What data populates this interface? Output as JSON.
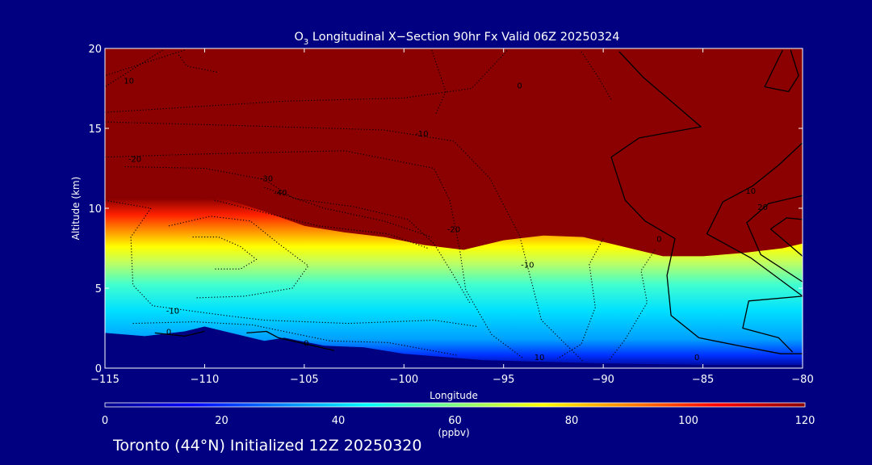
{
  "colors": {
    "background": "#000080",
    "saturated": "#8b0000",
    "contour": "#000000",
    "text": "#ffffff"
  },
  "chart_data": {
    "type": "heatmap",
    "title_main": "O",
    "title_sub": "3",
    "title_rest": " Longitudinal X−Section 90hr  Fx Valid 06Z 20250324",
    "xlabel": "Longitude",
    "ylabel": "Altitude (km)",
    "xlim": [
      -115,
      -80
    ],
    "ylim": [
      0,
      20
    ],
    "x_ticks": [
      -115,
      -110,
      -105,
      -100,
      -95,
      -90,
      -85,
      -80
    ],
    "x_tick_labels": [
      "−115",
      "−110",
      "−105",
      "−100",
      "−95",
      "−90",
      "−85",
      "−80"
    ],
    "y_ticks": [
      0,
      5,
      10,
      15,
      20
    ],
    "y_tick_labels": [
      "0",
      "5",
      "10",
      "15",
      "20"
    ],
    "colorbar": {
      "min": 0,
      "max": 120,
      "ticks": [
        0,
        20,
        40,
        60,
        80,
        100,
        120
      ],
      "tick_labels": [
        "0",
        "20",
        "40",
        "60",
        "80",
        "100",
        "120"
      ],
      "units": "(ppbv)",
      "colors": [
        "#00008b",
        "#0000ff",
        "#0080ff",
        "#00ffff",
        "#80ff80",
        "#ffff00",
        "#ff8000",
        "#ff0000",
        "#8b0000"
      ]
    },
    "ozone_field": {
      "saturation_boundary_km": [
        {
          "lon": -115,
          "alt": 11.2
        },
        {
          "lon": -113,
          "alt": 11.3
        },
        {
          "lon": -111,
          "alt": 11.0
        },
        {
          "lon": -109,
          "alt": 10.6
        },
        {
          "lon": -107,
          "alt": 9.8
        },
        {
          "lon": -105,
          "alt": 8.9
        },
        {
          "lon": -103,
          "alt": 8.5
        },
        {
          "lon": -101,
          "alt": 8.2
        },
        {
          "lon": -99,
          "alt": 7.7
        },
        {
          "lon": -97,
          "alt": 7.4
        },
        {
          "lon": -95,
          "alt": 8.0
        },
        {
          "lon": -93,
          "alt": 8.3
        },
        {
          "lon": -91,
          "alt": 8.2
        },
        {
          "lon": -89,
          "alt": 7.6
        },
        {
          "lon": -87,
          "alt": 7.0
        },
        {
          "lon": -85,
          "alt": 7.0
        },
        {
          "lon": -83,
          "alt": 7.2
        },
        {
          "lon": -81,
          "alt": 7.5
        },
        {
          "lon": -80,
          "alt": 7.8
        }
      ],
      "terrain_km": [
        {
          "lon": -115,
          "alt": 2.2
        },
        {
          "lon": -113,
          "alt": 2.0
        },
        {
          "lon": -111,
          "alt": 2.3
        },
        {
          "lon": -110,
          "alt": 2.6
        },
        {
          "lon": -108,
          "alt": 2.0
        },
        {
          "lon": -107,
          "alt": 1.7
        },
        {
          "lon": -106,
          "alt": 1.9
        },
        {
          "lon": -104,
          "alt": 1.4
        },
        {
          "lon": -102,
          "alt": 1.3
        },
        {
          "lon": -100,
          "alt": 0.9
        },
        {
          "lon": -96,
          "alt": 0.5
        },
        {
          "lon": -90,
          "alt": 0.3
        },
        {
          "lon": -85,
          "alt": 0.2
        },
        {
          "lon": -80,
          "alt": 0.2
        }
      ]
    },
    "contour_labels": [
      {
        "text": "10",
        "lon": -113.8,
        "alt": 17.8
      },
      {
        "text": "-20",
        "lon": -113.5,
        "alt": 12.9
      },
      {
        "text": "-30",
        "lon": -106.9,
        "alt": 11.7
      },
      {
        "text": "-40",
        "lon": -106.2,
        "alt": 10.8
      },
      {
        "text": "-10",
        "lon": -99.1,
        "alt": 14.5
      },
      {
        "text": "0",
        "lon": -94.2,
        "alt": 17.5
      },
      {
        "text": "-20",
        "lon": -97.5,
        "alt": 8.5
      },
      {
        "text": "-10",
        "lon": -93.8,
        "alt": 6.3
      },
      {
        "text": "-10",
        "lon": -111.6,
        "alt": 3.4
      },
      {
        "text": "0",
        "lon": -111.8,
        "alt": 2.1
      },
      {
        "text": "0",
        "lon": -104.9,
        "alt": 1.4
      },
      {
        "text": "10",
        "lon": -93.2,
        "alt": 0.5
      },
      {
        "text": "0",
        "lon": -85.3,
        "alt": 0.5
      },
      {
        "text": "0",
        "lon": -87.2,
        "alt": 7.9
      },
      {
        "text": "10",
        "lon": -82.6,
        "alt": 10.9
      },
      {
        "text": "20",
        "lon": -82.0,
        "alt": 9.9
      }
    ],
    "contours_solid": [
      [
        [
          -81,
          19.9
        ],
        [
          -81.9,
          17.6
        ],
        [
          -80.7,
          17.3
        ],
        [
          -80.2,
          18.3
        ],
        [
          -80.6,
          19.9
        ]
      ],
      [
        [
          -89.2,
          19.8
        ],
        [
          -88,
          18.2
        ],
        [
          -85.1,
          15.1
        ],
        [
          -88.2,
          14.4
        ],
        [
          -89.6,
          13.2
        ],
        [
          -88.9,
          10.5
        ],
        [
          -87.9,
          9.2
        ],
        [
          -86.4,
          8.1
        ],
        [
          -86.8,
          5.8
        ],
        [
          -86.6,
          3.3
        ],
        [
          -85.2,
          1.9
        ],
        [
          -83.2,
          1.4
        ],
        [
          -81.1,
          0.9
        ],
        [
          -80,
          0.9
        ]
      ],
      [
        [
          -80,
          4.5
        ],
        [
          -82.6,
          6.9
        ],
        [
          -84.8,
          8.4
        ],
        [
          -84,
          10.4
        ],
        [
          -82.5,
          11.4
        ],
        [
          -81.2,
          12.7
        ],
        [
          -80,
          14.1
        ]
      ],
      [
        [
          -80,
          4.5
        ],
        [
          -82.7,
          4.2
        ],
        [
          -83,
          2.5
        ],
        [
          -81.2,
          1.9
        ],
        [
          -80.5,
          1.0
        ]
      ],
      [
        [
          -80,
          5.4
        ],
        [
          -82.1,
          7.1
        ],
        [
          -82.8,
          9.1
        ],
        [
          -81.7,
          10.3
        ],
        [
          -80,
          10.8
        ]
      ],
      [
        [
          -80,
          7.0
        ],
        [
          -81.6,
          8.7
        ],
        [
          -80.8,
          9.4
        ],
        [
          -80,
          9.3
        ]
      ],
      [
        [
          -107.9,
          2.2
        ],
        [
          -106.9,
          2.3
        ],
        [
          -106.3,
          1.9
        ],
        [
          -103.5,
          1.1
        ]
      ],
      [
        [
          -112.5,
          2.2
        ],
        [
          -111,
          2.0
        ],
        [
          -110,
          2.3
        ]
      ]
    ],
    "contours_dotted": [
      [
        [
          -111,
          19.9
        ],
        [
          -115,
          18.3
        ]
      ],
      [
        [
          -112.1,
          19.9
        ],
        [
          -115,
          17.6
        ]
      ],
      [
        [
          -115,
          16.0
        ],
        [
          -106,
          16.7
        ],
        [
          -100,
          16.9
        ],
        [
          -96.6,
          17.5
        ],
        [
          -94.8,
          19.9
        ]
      ],
      [
        [
          -115,
          15.4
        ],
        [
          -109,
          15.2
        ],
        [
          -101,
          14.9
        ],
        [
          -97.5,
          14.2
        ],
        [
          -95.7,
          11.9
        ],
        [
          -94.2,
          8.3
        ],
        [
          -93.1,
          3.0
        ],
        [
          -91,
          0.4
        ]
      ],
      [
        [
          -115,
          13.2
        ],
        [
          -110,
          13.4
        ],
        [
          -103,
          13.6
        ],
        [
          -98.5,
          12.5
        ],
        [
          -97.7,
          10.5
        ],
        [
          -97.2,
          7.4
        ],
        [
          -96.9,
          4.9
        ],
        [
          -95.6,
          2.1
        ],
        [
          -94,
          0.6
        ]
      ],
      [
        [
          -114,
          12.6
        ],
        [
          -110,
          12.5
        ],
        [
          -107,
          11.8
        ],
        [
          -105.5,
          10.6
        ],
        [
          -102.5,
          10.1
        ],
        [
          -99.8,
          9.3
        ],
        [
          -98.5,
          7.8
        ],
        [
          -97.6,
          6.0
        ],
        [
          -96.7,
          4.1
        ]
      ],
      [
        [
          -107,
          11.3
        ],
        [
          -104,
          10.0
        ],
        [
          -101,
          9.2
        ],
        [
          -98.6,
          8.2
        ]
      ],
      [
        [
          -109.5,
          10.5
        ],
        [
          -104.3,
          8.9
        ],
        [
          -100.8,
          8.4
        ],
        [
          -98.8,
          7.5
        ]
      ],
      [
        [
          -115,
          10.5
        ],
        [
          -112.7,
          10.0
        ],
        [
          -113.7,
          8.2
        ],
        [
          -113.6,
          5.2
        ],
        [
          -112.6,
          3.9
        ],
        [
          -109,
          3.3
        ],
        [
          -107,
          3.0
        ],
        [
          -102.8,
          2.8
        ],
        [
          -98.5,
          3.0
        ],
        [
          -96.3,
          2.6
        ]
      ],
      [
        [
          -111.8,
          8.9
        ],
        [
          -109.7,
          9.5
        ],
        [
          -107.7,
          9.2
        ],
        [
          -106.3,
          7.8
        ],
        [
          -104.8,
          6.4
        ],
        [
          -105.6,
          5.0
        ],
        [
          -108,
          4.5
        ],
        [
          -110.4,
          4.4
        ]
      ],
      [
        [
          -110.6,
          8.2
        ],
        [
          -109.3,
          8.2
        ],
        [
          -108.2,
          7.6
        ],
        [
          -107.4,
          6.8
        ],
        [
          -108.2,
          6.2
        ],
        [
          -109.5,
          6.2
        ]
      ],
      [
        [
          -113.6,
          2.8
        ],
        [
          -110.5,
          2.9
        ],
        [
          -107.6,
          2.7
        ],
        [
          -103.7,
          1.7
        ],
        [
          -100.8,
          1.6
        ],
        [
          -97.3,
          0.8
        ]
      ],
      [
        [
          -90,
          8.1
        ],
        [
          -90.7,
          6.5
        ],
        [
          -90.4,
          3.8
        ],
        [
          -91.1,
          1.5
        ],
        [
          -92.3,
          0.6
        ]
      ],
      [
        [
          -87.4,
          7.4
        ],
        [
          -88.1,
          6.1
        ],
        [
          -87.8,
          4.1
        ],
        [
          -88.9,
          1.8
        ],
        [
          -89.7,
          0.5
        ]
      ],
      [
        [
          -98.6,
          19.9
        ],
        [
          -97.9,
          17.3
        ],
        [
          -98.4,
          15.9
        ]
      ],
      [
        [
          -91.1,
          19.8
        ],
        [
          -90.2,
          18.1
        ],
        [
          -89.6,
          16.8
        ]
      ],
      [
        [
          -111.3,
          19.6
        ],
        [
          -110.9,
          18.9
        ],
        [
          -109.3,
          18.5
        ]
      ]
    ]
  },
  "footer": {
    "text": "Toronto (44°N) Initialized 12Z 20250320"
  }
}
